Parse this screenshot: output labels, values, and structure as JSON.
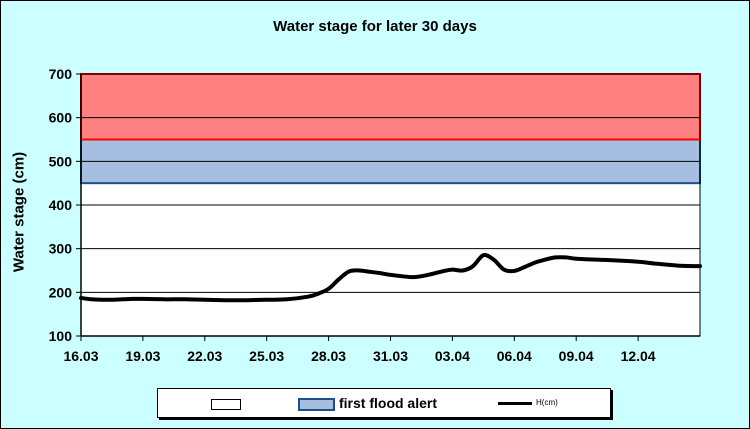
{
  "chart_data": {
    "type": "line",
    "title": "Water stage for later 30 days",
    "ylabel": "Water stage (cm)",
    "xlabel": "",
    "ylim": [
      100,
      700
    ],
    "yticks": [
      100,
      200,
      300,
      400,
      500,
      600,
      700
    ],
    "xlim": [
      0,
      30
    ],
    "xticks": [
      {
        "x": 0,
        "label": "16.03"
      },
      {
        "x": 3,
        "label": "19.03"
      },
      {
        "x": 6,
        "label": "22.03"
      },
      {
        "x": 9,
        "label": "25.03"
      },
      {
        "x": 12,
        "label": "28.03"
      },
      {
        "x": 15,
        "label": "31.03"
      },
      {
        "x": 18,
        "label": "03.04"
      },
      {
        "x": 21,
        "label": "06.04"
      },
      {
        "x": 24,
        "label": "09.04"
      },
      {
        "x": 27,
        "label": "12.04"
      }
    ],
    "bands": [
      {
        "from": 450,
        "to": 550,
        "fill": "#a6bfe0",
        "stroke": "#1f4e8c",
        "name": "first flood alert"
      },
      {
        "from": 550,
        "to": 700,
        "fill": "#ff8080",
        "stroke": "#ff0000",
        "name": ""
      }
    ],
    "legend": {
      "position": "bottom",
      "entries": [
        "",
        "first flood alert",
        "H(cm)"
      ]
    },
    "grid": true,
    "series": [
      {
        "name": "H(cm)",
        "color": "#000000",
        "x": [
          0,
          0.5,
          1,
          1.5,
          2,
          2.5,
          3,
          4,
          5,
          6,
          7,
          8,
          9,
          10,
          11,
          11.5,
          12,
          12.5,
          13,
          13.5,
          14,
          14.5,
          15,
          16,
          16.5,
          17,
          17.5,
          18,
          18.5,
          19,
          19.5,
          20,
          20.5,
          21,
          21.5,
          22,
          22.5,
          23,
          23.5,
          24,
          25,
          26,
          27,
          28,
          29,
          30
        ],
        "values": [
          187,
          184,
          183,
          183,
          184,
          185,
          185,
          184,
          184,
          183,
          182,
          182,
          183,
          184,
          190,
          197,
          208,
          230,
          248,
          250,
          247,
          244,
          240,
          235,
          237,
          242,
          248,
          252,
          250,
          260,
          285,
          275,
          252,
          249,
          258,
          268,
          275,
          280,
          280,
          277,
          275,
          273,
          270,
          265,
          261,
          260
        ]
      }
    ]
  }
}
